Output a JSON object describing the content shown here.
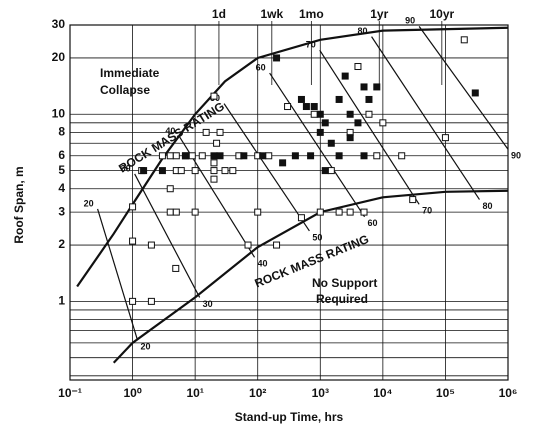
{
  "chart_data": {
    "type": "scatter",
    "x_label": "Stand-up Time, hrs",
    "y_label": "Roof Span, m",
    "log_x": true,
    "log_y": true,
    "grid": true,
    "xlim": [
      0.1,
      1000000
    ],
    "ylim": [
      0.38,
      30
    ],
    "xticks": [
      {
        "value": 0.1,
        "label": "10⁻¹"
      },
      {
        "value": 1,
        "label": "10⁰"
      },
      {
        "value": 10,
        "label": "10¹"
      },
      {
        "value": 100,
        "label": "10²"
      },
      {
        "value": 1000,
        "label": "10³"
      },
      {
        "value": 10000,
        "label": "10⁴"
      },
      {
        "value": 100000,
        "label": "10⁵"
      },
      {
        "value": 1000000,
        "label": "10⁶"
      }
    ],
    "x2ticks": [
      {
        "value": 24,
        "label": "1d"
      },
      {
        "value": 168,
        "label": "1wk"
      },
      {
        "value": 720,
        "label": "1mo"
      },
      {
        "value": 8760,
        "label": "1yr"
      },
      {
        "value": 87600,
        "label": "10yr"
      }
    ],
    "yticks": [
      1,
      2,
      3,
      4,
      5,
      6,
      8,
      10,
      20,
      30
    ],
    "y_minor_grid": [
      0.4,
      0.5,
      0.6,
      0.7,
      0.8,
      0.9,
      7,
      9
    ],
    "color": "#111111",
    "series": [
      {
        "marker": "open",
        "x": [
          1,
          1,
          1,
          2,
          2,
          1.4,
          3,
          4,
          4,
          4,
          5,
          5,
          5,
          6,
          7,
          9,
          10,
          10,
          13,
          15,
          20,
          20,
          20,
          20,
          22,
          25,
          30,
          40,
          50,
          70,
          100,
          100,
          150,
          200,
          300,
          500,
          800,
          1000,
          1500,
          2000,
          3000,
          3000,
          4000,
          5000,
          6000,
          8000,
          10000,
          20000,
          30000,
          100000,
          200000,
          4.9
        ],
        "y": [
          3.2,
          2.1,
          1,
          1,
          2,
          5,
          6,
          6,
          4,
          3,
          3,
          6,
          5,
          5,
          6,
          6,
          3,
          5,
          6,
          8,
          4.5,
          5,
          5.5,
          12.5,
          7,
          8,
          5,
          5,
          6,
          2,
          3,
          6,
          6,
          2,
          11,
          2.8,
          10,
          3,
          5,
          3,
          3,
          8,
          18,
          3,
          10,
          6,
          9,
          6,
          3.5,
          7.5,
          25,
          1.5
        ]
      },
      {
        "marker": "filled",
        "x": [
          1.5,
          3,
          7,
          20,
          25,
          60,
          120,
          200,
          250,
          400,
          500,
          600,
          700,
          1000,
          1000,
          1200,
          1500,
          2000,
          2000,
          2500,
          3000,
          3000,
          4000,
          5000,
          5000,
          6000,
          8000,
          300000,
          1200,
          800
        ],
        "y": [
          5,
          5,
          6,
          6,
          6,
          6,
          6,
          20,
          5.5,
          6,
          12,
          11,
          6,
          8,
          10,
          9,
          7,
          6,
          12,
          16,
          10,
          7.5,
          9,
          6,
          14,
          12,
          14,
          13,
          5,
          11
        ]
      }
    ],
    "curves": [
      {
        "x": [
          0.13,
          0.5,
          1,
          3,
          10,
          30,
          100,
          1000,
          10000,
          1000000
        ],
        "y": [
          1.2,
          2.3,
          3.3,
          5.8,
          10,
          15,
          20,
          25,
          28,
          29
        ]
      },
      {
        "x": [
          0.5,
          1,
          10,
          100,
          1000,
          10000,
          100000,
          1000000
        ],
        "y": [
          0.47,
          0.6,
          1.05,
          1.95,
          3,
          3.6,
          3.85,
          3.9
        ]
      }
    ],
    "rating_lines": [
      {
        "label": "20",
        "x": [
          0.276,
          1.2
        ],
        "y": [
          3.12,
          0.62
        ]
      },
      {
        "label": "30",
        "x": [
          1.08,
          11.8
        ],
        "y": [
          4.8,
          1.05
        ]
      },
      {
        "label": "40",
        "x": [
          5.6,
          89
        ],
        "y": [
          7.6,
          1.72
        ]
      },
      {
        "label": "50",
        "x": [
          29,
          670
        ],
        "y": [
          11.4,
          2.38
        ]
      },
      {
        "label": "60",
        "x": [
          155,
          5100
        ],
        "y": [
          16.6,
          2.83
        ]
      },
      {
        "label": "70",
        "x": [
          980,
          38000
        ],
        "y": [
          22,
          3.3
        ]
      },
      {
        "label": "80",
        "x": [
          6600,
          350000
        ],
        "y": [
          26,
          3.5
        ]
      },
      {
        "label": "90",
        "x": [
          38000,
          1000000
        ],
        "y": [
          29.5,
          6.5
        ]
      }
    ],
    "annotations": [
      "Immediate",
      "Collapse",
      "ROCK MASS RATING",
      "ROCK MASS RATING",
      "No Support",
      "Required"
    ]
  }
}
